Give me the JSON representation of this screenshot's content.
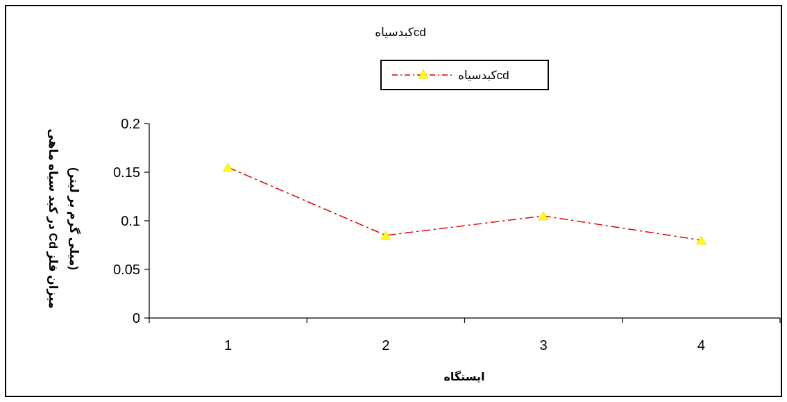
{
  "chart_data": {
    "type": "line",
    "title": "کبدسیاهcd",
    "xlabel": "ایستگاه",
    "ylabel_line1": "میزان فلز Cd در کبد سیاه ماهی",
    "ylabel_line2": "(میلی گرم بر لیتر)",
    "categories": [
      "1",
      "2",
      "3",
      "4"
    ],
    "series": [
      {
        "name": "کبدسیاهcd",
        "values": [
          0.155,
          0.085,
          0.105,
          0.08
        ],
        "line_color": "#e00000",
        "line_style": "dash-dot",
        "marker": "triangle",
        "marker_color": "#ffff00"
      }
    ],
    "ylim": [
      0,
      0.2
    ],
    "yticks": [
      "0",
      "0.05",
      "0.1",
      "0.15",
      "0.2"
    ],
    "legend_position": "top",
    "grid": false
  }
}
